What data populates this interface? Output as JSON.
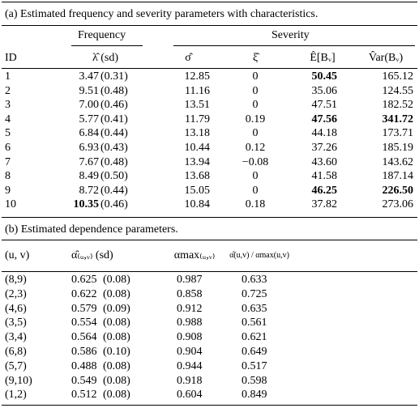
{
  "table_a": {
    "caption": "(a) Estimated frequency and severity parameters with characteristics.",
    "groups": [
      "Frequency",
      "Severity"
    ],
    "header": [
      "ID",
      "λ̂ (sd)",
      "σ̂",
      "ξ̂",
      "Ê[Bᵥ]",
      "V̂ar(Bᵥ)"
    ],
    "rows": [
      [
        "1",
        "3.47",
        "(0.31)",
        "12.85",
        "0",
        "50.45",
        "165.12"
      ],
      [
        "2",
        "9.51",
        "(0.48)",
        "11.16",
        "0",
        "35.06",
        "124.55"
      ],
      [
        "3",
        "7.00",
        "(0.46)",
        "13.51",
        "0",
        "47.51",
        "182.52"
      ],
      [
        "4",
        "5.77",
        "(0.41)",
        "11.79",
        "0.19",
        "47.56",
        "341.72"
      ],
      [
        "5",
        "6.84",
        "(0.44)",
        "13.18",
        "0",
        "44.18",
        "173.71"
      ],
      [
        "6",
        "6.93",
        "(0.43)",
        "10.44",
        "0.12",
        "37.26",
        "185.19"
      ],
      [
        "7",
        "7.67",
        "(0.48)",
        "13.94",
        "−0.08",
        "43.60",
        "143.62"
      ],
      [
        "8",
        "8.49",
        "(0.50)",
        "13.68",
        "0",
        "41.58",
        "187.14"
      ],
      [
        "9",
        "8.72",
        "(0.44)",
        "15.05",
        "0",
        "46.25",
        "226.50"
      ],
      [
        "10",
        "10.35",
        "(0.46)",
        "10.84",
        "0.18",
        "37.82",
        "273.06"
      ]
    ],
    "bold": [
      [
        0,
        5
      ],
      [
        3,
        5
      ],
      [
        3,
        6
      ],
      [
        8,
        5
      ],
      [
        8,
        6
      ],
      [
        9,
        1
      ]
    ]
  },
  "table_b": {
    "caption": "(b) Estimated dependence parameters.",
    "header": [
      "(u, v)",
      "α̂₍ᵤ,ᵥ₎ (sd)",
      "αmax₍ᵤ,ᵥ₎",
      "α̂(u,v) / αmax(u,v)"
    ],
    "rows": [
      [
        "(8,9)",
        "0.625",
        "(0.08)",
        "0.987",
        "0.633"
      ],
      [
        "(2,3)",
        "0.622",
        "(0.08)",
        "0.858",
        "0.725"
      ],
      [
        "(4,6)",
        "0.579",
        "(0.09)",
        "0.912",
        "0.635"
      ],
      [
        "(3,5)",
        "0.554",
        "(0.08)",
        "0.988",
        "0.561"
      ],
      [
        "(3,4)",
        "0.564",
        "(0.08)",
        "0.908",
        "0.621"
      ],
      [
        "(6,8)",
        "0.586",
        "(0.10)",
        "0.904",
        "0.649"
      ],
      [
        "(5,7)",
        "0.488",
        "(0.08)",
        "0.944",
        "0.517"
      ],
      [
        "(9,10)",
        "0.549",
        "(0.08)",
        "0.918",
        "0.598"
      ],
      [
        "(1,2)",
        "0.512",
        "(0.08)",
        "0.604",
        "0.849"
      ]
    ]
  }
}
